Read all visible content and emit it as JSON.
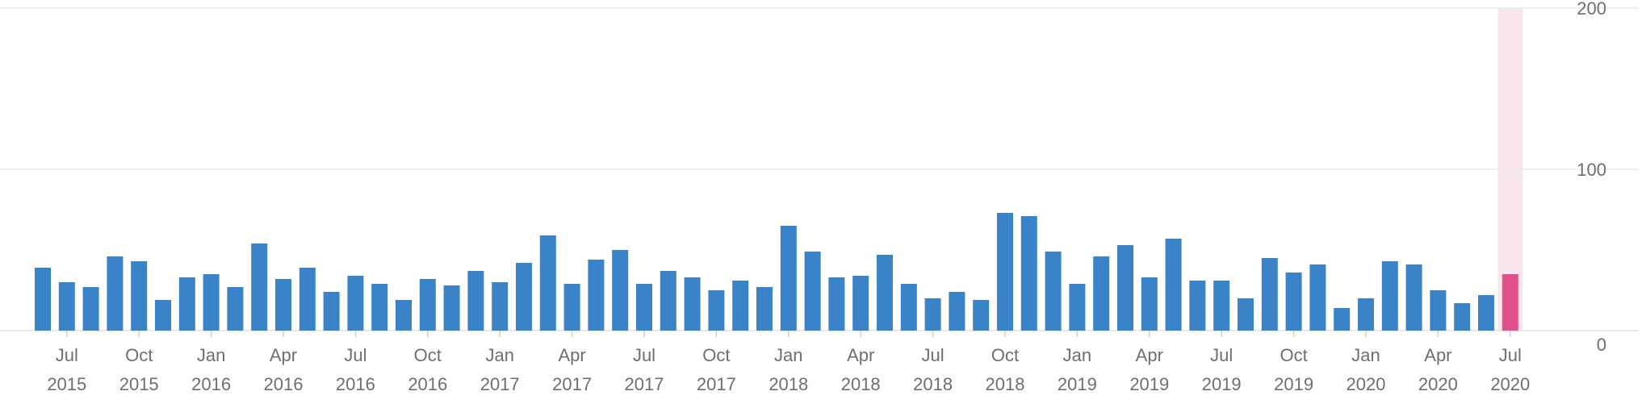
{
  "chart_data": {
    "type": "bar",
    "title": "",
    "xlabel": "",
    "ylabel": "",
    "ylim": [
      0,
      200
    ],
    "yticks": [
      0,
      100,
      200
    ],
    "grid": true,
    "legend": "none",
    "colors": {
      "bar": "#3a83c9",
      "highlight_bar": "#e0508a",
      "highlight_band": "#f8e6ec"
    },
    "highlight_index": 61,
    "categories": [
      "2015-06",
      "2015-07",
      "2015-08",
      "2015-09",
      "2015-10",
      "2015-11",
      "2015-12",
      "2016-01",
      "2016-02",
      "2016-03",
      "2016-04",
      "2016-05",
      "2016-06",
      "2016-07",
      "2016-08",
      "2016-09",
      "2016-10",
      "2016-11",
      "2016-12",
      "2017-01",
      "2017-02",
      "2017-03",
      "2017-04",
      "2017-05",
      "2017-06",
      "2017-07",
      "2017-08",
      "2017-09",
      "2017-10",
      "2017-11",
      "2017-12",
      "2018-01",
      "2018-02",
      "2018-03",
      "2018-04",
      "2018-05",
      "2018-06",
      "2018-07",
      "2018-08",
      "2018-09",
      "2018-10",
      "2018-11",
      "2018-12",
      "2019-01",
      "2019-02",
      "2019-03",
      "2019-04",
      "2019-05",
      "2019-06",
      "2019-07",
      "2019-08",
      "2019-09",
      "2019-10",
      "2019-11",
      "2019-12",
      "2020-01",
      "2020-02",
      "2020-03",
      "2020-04",
      "2020-05",
      "2020-06",
      "2020-07"
    ],
    "values": [
      39,
      30,
      27,
      46,
      43,
      19,
      33,
      35,
      27,
      54,
      32,
      39,
      24,
      34,
      29,
      19,
      32,
      28,
      37,
      30,
      42,
      59,
      29,
      44,
      50,
      29,
      37,
      33,
      25,
      31,
      27,
      65,
      49,
      33,
      34,
      47,
      29,
      20,
      24,
      19,
      73,
      71,
      49,
      29,
      46,
      53,
      33,
      57,
      31,
      31,
      20,
      45,
      36,
      41,
      14,
      20,
      43,
      41,
      25,
      17,
      22,
      35
    ],
    "x_tick_labels": [
      {
        "month": "Jul",
        "year": "2015",
        "index": 1
      },
      {
        "month": "Oct",
        "year": "2015",
        "index": 4
      },
      {
        "month": "Jan",
        "year": "2016",
        "index": 7
      },
      {
        "month": "Apr",
        "year": "2016",
        "index": 10
      },
      {
        "month": "Jul",
        "year": "2016",
        "index": 13
      },
      {
        "month": "Oct",
        "year": "2016",
        "index": 16
      },
      {
        "month": "Jan",
        "year": "2017",
        "index": 19
      },
      {
        "month": "Apr",
        "year": "2017",
        "index": 22
      },
      {
        "month": "Jul",
        "year": "2017",
        "index": 25
      },
      {
        "month": "Oct",
        "year": "2017",
        "index": 28
      },
      {
        "month": "Jan",
        "year": "2018",
        "index": 31
      },
      {
        "month": "Apr",
        "year": "2018",
        "index": 34
      },
      {
        "month": "Jul",
        "year": "2018",
        "index": 37
      },
      {
        "month": "Oct",
        "year": "2018",
        "index": 40
      },
      {
        "month": "Jan",
        "year": "2019",
        "index": 43
      },
      {
        "month": "Apr",
        "year": "2019",
        "index": 46
      },
      {
        "month": "Jul",
        "year": "2019",
        "index": 49
      },
      {
        "month": "Oct",
        "year": "2019",
        "index": 52
      },
      {
        "month": "Jan",
        "year": "2020",
        "index": 55
      },
      {
        "month": "Apr",
        "year": "2020",
        "index": 58
      },
      {
        "month": "Jul",
        "year": "2020",
        "index": 61
      }
    ]
  }
}
